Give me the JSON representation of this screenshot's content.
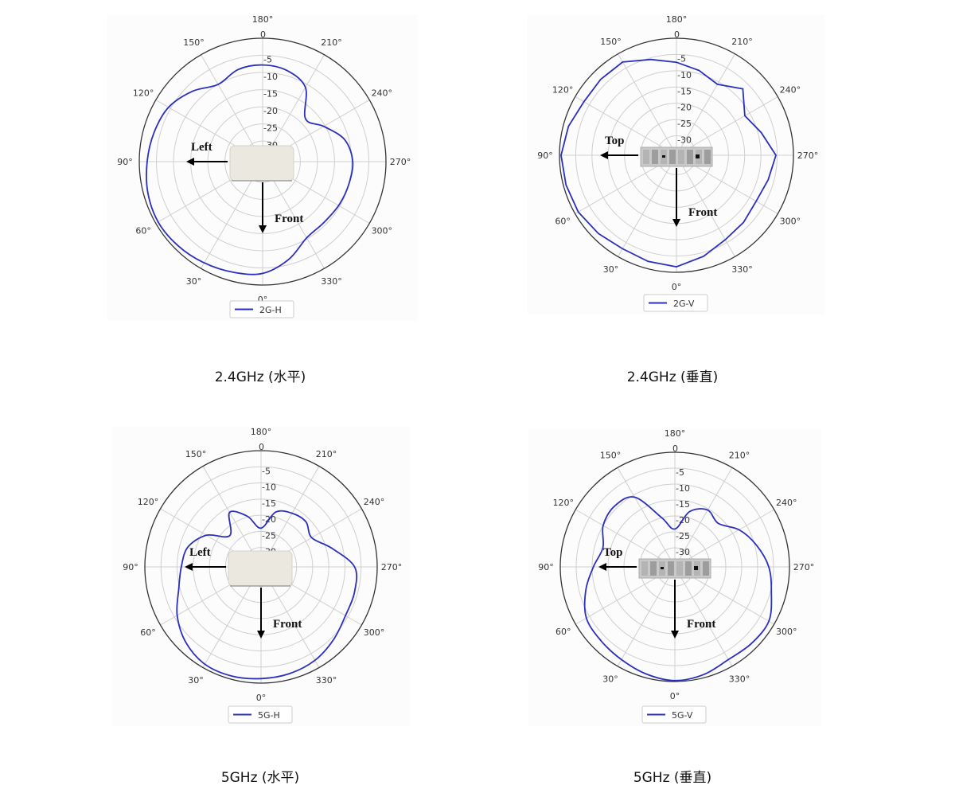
{
  "chart_data": [
    {
      "type": "polar",
      "caption": "2.4GHz (水平)",
      "legend": "2G-H",
      "legend_placement": "bottom",
      "color": "#2b2fbf",
      "theta_zero": "bottom",
      "theta_direction": "clockwise",
      "rlim": [
        -36,
        0
      ],
      "rticks": [
        "0",
        "-5",
        "-10",
        "-15",
        "-20",
        "-25",
        "-30"
      ],
      "rtick_values": [
        0,
        -5,
        -10,
        -15,
        -20,
        -25,
        -30
      ],
      "angle_labels": [
        "0°",
        "30°",
        "60°",
        "90°",
        "120°",
        "150°",
        "180°",
        "210°",
        "240°",
        "270°",
        "300°",
        "330°"
      ],
      "annotations": {
        "side": "Left",
        "front": "Front"
      },
      "grid": true,
      "theta": [
        0,
        15,
        30,
        45,
        60,
        75,
        90,
        105,
        120,
        135,
        150,
        165,
        180,
        195,
        210,
        225,
        240,
        255,
        270,
        285,
        300,
        315,
        330,
        345
      ],
      "r": [
        -3.4,
        -2.6,
        -1.9,
        -1.2,
        -0.8,
        -1.3,
        -2.3,
        -3.2,
        -4.3,
        -7.0,
        -10.0,
        -8.2,
        -7.8,
        -8.5,
        -11.0,
        -18.3,
        -15.4,
        -11.2,
        -9.7,
        -10.0,
        -10.4,
        -10.8,
        -10.3,
        -6.5
      ]
    },
    {
      "type": "polar",
      "caption": "2.4GHz (垂直)",
      "legend": "2G-V",
      "legend_placement": "bottom",
      "color": "#2b2fbf",
      "theta_zero": "bottom",
      "theta_direction": "clockwise",
      "rlim": [
        -36,
        0
      ],
      "rticks": [
        "0",
        "-5",
        "-10",
        "-15",
        "-20",
        "-25",
        "-30"
      ],
      "rtick_values": [
        0,
        -5,
        -10,
        -15,
        -20,
        -25,
        -30
      ],
      "angle_labels": [
        "0°",
        "30°",
        "60°",
        "90°",
        "120°",
        "150°",
        "180°",
        "210°",
        "240°",
        "270°",
        "300°",
        "330°"
      ],
      "annotations": {
        "side": "Top",
        "front": "Front"
      },
      "grid": true,
      "theta": [
        0,
        15,
        30,
        45,
        60,
        75,
        90,
        105,
        120,
        135,
        150,
        165,
        180,
        195,
        210,
        225,
        240,
        255,
        270,
        285,
        300,
        315,
        330,
        345
      ],
      "r": [
        -1.7,
        -2.2,
        -2.8,
        -2.0,
        -1.1,
        -0.8,
        -0.5,
        -1.6,
        -3.1,
        -3.0,
        -2.9,
        -5.5,
        -7.4,
        -9.0,
        -10.8,
        -7.1,
        -11.7,
        -9.0,
        -5.4,
        -6.8,
        -7.7,
        -6.8,
        -6.0,
        -3.8
      ]
    },
    {
      "type": "polar",
      "caption": "5GHz (水平)",
      "legend": "5G-H",
      "legend_placement": "bottom",
      "color": "#2b2fbf",
      "theta_zero": "bottom",
      "theta_direction": "clockwise",
      "rlim": [
        -36,
        0
      ],
      "rticks": [
        "0",
        "-5",
        "-10",
        "-15",
        "-20",
        "-25",
        "-30"
      ],
      "rtick_values": [
        0,
        -5,
        -10,
        -15,
        -20,
        -25,
        -30
      ],
      "angle_labels": [
        "0°",
        "30°",
        "60°",
        "90°",
        "120°",
        "150°",
        "180°",
        "210°",
        "240°",
        "270°",
        "300°",
        "330°"
      ],
      "annotations": {
        "side": "Left",
        "front": "Front"
      },
      "grid": true,
      "theta": [
        0,
        15,
        30,
        45,
        60,
        75,
        90,
        105,
        120,
        135,
        150,
        165,
        180,
        195,
        210,
        225,
        240,
        255,
        270,
        285,
        300,
        315,
        330,
        345
      ],
      "r": [
        -1.4,
        -1.0,
        -1.2,
        -3.0,
        -6.0,
        -9.6,
        -11.3,
        -12.5,
        -16.4,
        -22.3,
        -16.5,
        -19.8,
        -24.0,
        -18.4,
        -16.8,
        -16.3,
        -17.9,
        -13.4,
        -7.0,
        -6.0,
        -5.8,
        -4.2,
        -2.6,
        -1.8
      ]
    },
    {
      "type": "polar",
      "caption": "5GHz (垂直)",
      "legend": "5G-V",
      "legend_placement": "bottom",
      "color": "#2b2fbf",
      "theta_zero": "bottom",
      "theta_direction": "clockwise",
      "rlim": [
        -36,
        0
      ],
      "rticks": [
        "0",
        "-5",
        "-10",
        "-15",
        "-20",
        "-25",
        "-30"
      ],
      "rtick_values": [
        0,
        -5,
        -10,
        -15,
        -20,
        -25,
        -30
      ],
      "angle_labels": [
        "0°",
        "30°",
        "60°",
        "90°",
        "120°",
        "150°",
        "180°",
        "210°",
        "240°",
        "270°",
        "300°",
        "330°"
      ],
      "annotations": {
        "side": "Top",
        "front": "Front"
      },
      "grid": true,
      "theta": [
        0,
        15,
        30,
        45,
        60,
        75,
        90,
        105,
        120,
        135,
        150,
        165,
        180,
        195,
        210,
        225,
        240,
        255,
        270,
        285,
        300,
        315,
        330,
        345
      ],
      "r": [
        -0.3,
        -1.2,
        -2.4,
        -3.2,
        -3.9,
        -7.0,
        -10.4,
        -12.6,
        -10.0,
        -9.1,
        -10.7,
        -20.0,
        -24.1,
        -18.0,
        -15.4,
        -16.7,
        -12.7,
        -9.5,
        -6.5,
        -4.6,
        -1.9,
        -2.0,
        -2.4,
        -1.0
      ]
    }
  ]
}
